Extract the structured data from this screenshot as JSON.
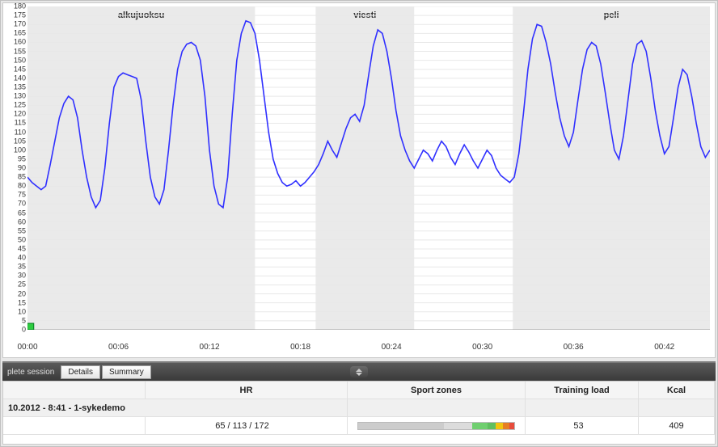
{
  "chart": {
    "type": "line",
    "background_color": "#ffffff",
    "line_color": "#3030ff",
    "line_width": 1.6,
    "grid_color": "#e8e8e8",
    "region_band_color": "#eaeaea",
    "label_color": "#333333",
    "label_fontsize": 11,
    "tick_fontsize": 9,
    "ylim": [
      0,
      180
    ],
    "ytick_step": 5,
    "xlim_minutes": [
      0,
      45
    ],
    "xtick_step_minutes": 6,
    "xticks": [
      "00:00",
      "00:06",
      "00:12",
      "00:18",
      "00:24",
      "00:30",
      "00:36",
      "00:42"
    ],
    "marker_at_minute": 0.2,
    "marker_color": "#2ecc40",
    "regions": [
      {
        "label": "alkujuoksu",
        "start_min": 0.0,
        "end_min": 15.0
      },
      {
        "label": "viesti",
        "start_min": 19.0,
        "end_min": 25.5
      },
      {
        "label": "peli",
        "start_min": 32.0,
        "end_min": 45.0
      }
    ],
    "series": [
      [
        0.0,
        85
      ],
      [
        0.3,
        82
      ],
      [
        0.6,
        80
      ],
      [
        0.9,
        78
      ],
      [
        1.2,
        80
      ],
      [
        1.5,
        92
      ],
      [
        1.8,
        105
      ],
      [
        2.1,
        118
      ],
      [
        2.4,
        126
      ],
      [
        2.7,
        130
      ],
      [
        3.0,
        128
      ],
      [
        3.3,
        118
      ],
      [
        3.6,
        100
      ],
      [
        3.9,
        85
      ],
      [
        4.2,
        74
      ],
      [
        4.5,
        68
      ],
      [
        4.8,
        72
      ],
      [
        5.1,
        90
      ],
      [
        5.4,
        115
      ],
      [
        5.7,
        135
      ],
      [
        6.0,
        141
      ],
      [
        6.3,
        143
      ],
      [
        6.6,
        142
      ],
      [
        6.9,
        141
      ],
      [
        7.2,
        140
      ],
      [
        7.5,
        128
      ],
      [
        7.8,
        105
      ],
      [
        8.1,
        85
      ],
      [
        8.4,
        74
      ],
      [
        8.7,
        70
      ],
      [
        9.0,
        78
      ],
      [
        9.3,
        100
      ],
      [
        9.6,
        125
      ],
      [
        9.9,
        145
      ],
      [
        10.2,
        155
      ],
      [
        10.5,
        159
      ],
      [
        10.8,
        160
      ],
      [
        11.1,
        158
      ],
      [
        11.4,
        150
      ],
      [
        11.7,
        130
      ],
      [
        12.0,
        100
      ],
      [
        12.3,
        80
      ],
      [
        12.6,
        70
      ],
      [
        12.9,
        68
      ],
      [
        13.2,
        85
      ],
      [
        13.5,
        120
      ],
      [
        13.8,
        150
      ],
      [
        14.1,
        165
      ],
      [
        14.4,
        172
      ],
      [
        14.7,
        171
      ],
      [
        15.0,
        165
      ],
      [
        15.3,
        150
      ],
      [
        15.6,
        130
      ],
      [
        15.9,
        110
      ],
      [
        16.2,
        95
      ],
      [
        16.5,
        87
      ],
      [
        16.8,
        82
      ],
      [
        17.1,
        80
      ],
      [
        17.4,
        81
      ],
      [
        17.7,
        83
      ],
      [
        18.0,
        80
      ],
      [
        18.3,
        82
      ],
      [
        18.6,
        85
      ],
      [
        18.9,
        88
      ],
      [
        19.2,
        92
      ],
      [
        19.5,
        98
      ],
      [
        19.8,
        105
      ],
      [
        20.1,
        100
      ],
      [
        20.4,
        96
      ],
      [
        20.7,
        104
      ],
      [
        21.0,
        112
      ],
      [
        21.3,
        118
      ],
      [
        21.6,
        120
      ],
      [
        21.9,
        116
      ],
      [
        22.2,
        125
      ],
      [
        22.5,
        142
      ],
      [
        22.8,
        158
      ],
      [
        23.1,
        167
      ],
      [
        23.4,
        165
      ],
      [
        23.7,
        155
      ],
      [
        24.0,
        140
      ],
      [
        24.3,
        122
      ],
      [
        24.6,
        108
      ],
      [
        24.9,
        100
      ],
      [
        25.2,
        94
      ],
      [
        25.5,
        90
      ],
      [
        25.8,
        95
      ],
      [
        26.1,
        100
      ],
      [
        26.4,
        98
      ],
      [
        26.7,
        94
      ],
      [
        27.0,
        100
      ],
      [
        27.3,
        105
      ],
      [
        27.6,
        102
      ],
      [
        27.9,
        96
      ],
      [
        28.2,
        92
      ],
      [
        28.5,
        98
      ],
      [
        28.8,
        103
      ],
      [
        29.1,
        99
      ],
      [
        29.4,
        94
      ],
      [
        29.7,
        90
      ],
      [
        30.0,
        95
      ],
      [
        30.3,
        100
      ],
      [
        30.6,
        97
      ],
      [
        30.9,
        90
      ],
      [
        31.2,
        86
      ],
      [
        31.5,
        84
      ],
      [
        31.8,
        82
      ],
      [
        32.1,
        85
      ],
      [
        32.4,
        98
      ],
      [
        32.7,
        120
      ],
      [
        33.0,
        145
      ],
      [
        33.3,
        162
      ],
      [
        33.6,
        170
      ],
      [
        33.9,
        169
      ],
      [
        34.2,
        160
      ],
      [
        34.5,
        148
      ],
      [
        34.8,
        132
      ],
      [
        35.1,
        118
      ],
      [
        35.4,
        108
      ],
      [
        35.7,
        102
      ],
      [
        36.0,
        110
      ],
      [
        36.3,
        128
      ],
      [
        36.6,
        145
      ],
      [
        36.9,
        156
      ],
      [
        37.2,
        160
      ],
      [
        37.5,
        158
      ],
      [
        37.8,
        148
      ],
      [
        38.1,
        132
      ],
      [
        38.4,
        115
      ],
      [
        38.7,
        100
      ],
      [
        39.0,
        95
      ],
      [
        39.3,
        108
      ],
      [
        39.6,
        128
      ],
      [
        39.9,
        148
      ],
      [
        40.2,
        159
      ],
      [
        40.5,
        161
      ],
      [
        40.8,
        155
      ],
      [
        41.1,
        140
      ],
      [
        41.4,
        122
      ],
      [
        41.7,
        108
      ],
      [
        42.0,
        98
      ],
      [
        42.3,
        102
      ],
      [
        42.6,
        118
      ],
      [
        42.9,
        135
      ],
      [
        43.2,
        145
      ],
      [
        43.5,
        142
      ],
      [
        43.8,
        130
      ],
      [
        44.1,
        115
      ],
      [
        44.4,
        102
      ],
      [
        44.7,
        96
      ],
      [
        45.0,
        100
      ]
    ]
  },
  "tabs": {
    "complete_session": "plete session",
    "details": "Details",
    "summary": "Summary"
  },
  "table": {
    "columns": {
      "hr": "HR",
      "sport_zones": "Sport zones",
      "training_load": "Training load",
      "kcal": "Kcal"
    },
    "session_label": "10.2012 - 8:41 - 1-sykedemo",
    "row": {
      "hr_text": "65 / 113 / 172",
      "hr_bar": {
        "total_width": 195,
        "segments": [
          {
            "color": "#cccccc",
            "frac": 0.55
          },
          {
            "color": "#dcdcdc",
            "frac": 0.18
          },
          {
            "color": "#6fcf6f",
            "frac": 0.1
          },
          {
            "color": "#5fbf5f",
            "frac": 0.05
          },
          {
            "color": "#f1c40f",
            "frac": 0.05
          },
          {
            "color": "#e67e22",
            "frac": 0.04
          },
          {
            "color": "#e74c3c",
            "frac": 0.03
          }
        ]
      },
      "training_load": "53",
      "training_load_bar": {
        "color": "#7f8c8d",
        "frac": 0.15
      },
      "kcal": "409"
    }
  }
}
